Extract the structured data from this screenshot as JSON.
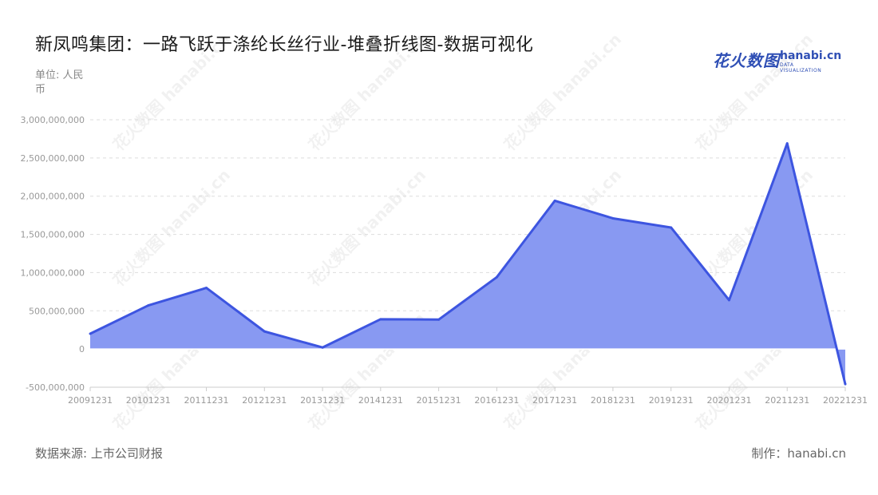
{
  "header": {
    "title": "新凤鸣集团：一路飞跃于涤纶长丝行业-堆叠折线图-数据可视化",
    "unit": "单位: 人民币"
  },
  "logo": {
    "cn": "花火数图",
    "en": "hanabi.cn",
    "sub": "DATA VISUALIZATION"
  },
  "footer": {
    "source": "数据来源: 上市公司财报",
    "maker": "制作：hanabi.cn"
  },
  "colors": {
    "line": "#3d55e0",
    "fill": "#8899f2",
    "grid": "#dddddd",
    "axis": "#cccccc"
  },
  "watermark": "花火数图 hanabi.cn",
  "chart_data": {
    "type": "area",
    "x": [
      "20091231",
      "20101231",
      "20111231",
      "20121231",
      "20131231",
      "20141231",
      "20151231",
      "20161231",
      "20171231",
      "20181231",
      "20191231",
      "20201231",
      "20211231",
      "20221231"
    ],
    "series": [
      {
        "values": [
          200000000,
          570000000,
          800000000,
          230000000,
          20000000,
          390000000,
          385000000,
          940000000,
          1940000000,
          1710000000,
          1590000000,
          640000000,
          2690000000,
          -460000000
        ]
      }
    ],
    "yticks": [
      3000000000,
      2500000000,
      2000000000,
      1500000000,
      1000000000,
      500000000,
      0,
      -500000000
    ],
    "ytick_labels": [
      "3,000,000,000",
      "2,500,000,000",
      "2,000,000,000",
      "1,500,000,000",
      "1,000,000,000",
      "500,000,000",
      "0",
      "-500,000,000"
    ],
    "ylim": [
      -500000000,
      3000000000
    ],
    "grid": true,
    "legend": false
  }
}
